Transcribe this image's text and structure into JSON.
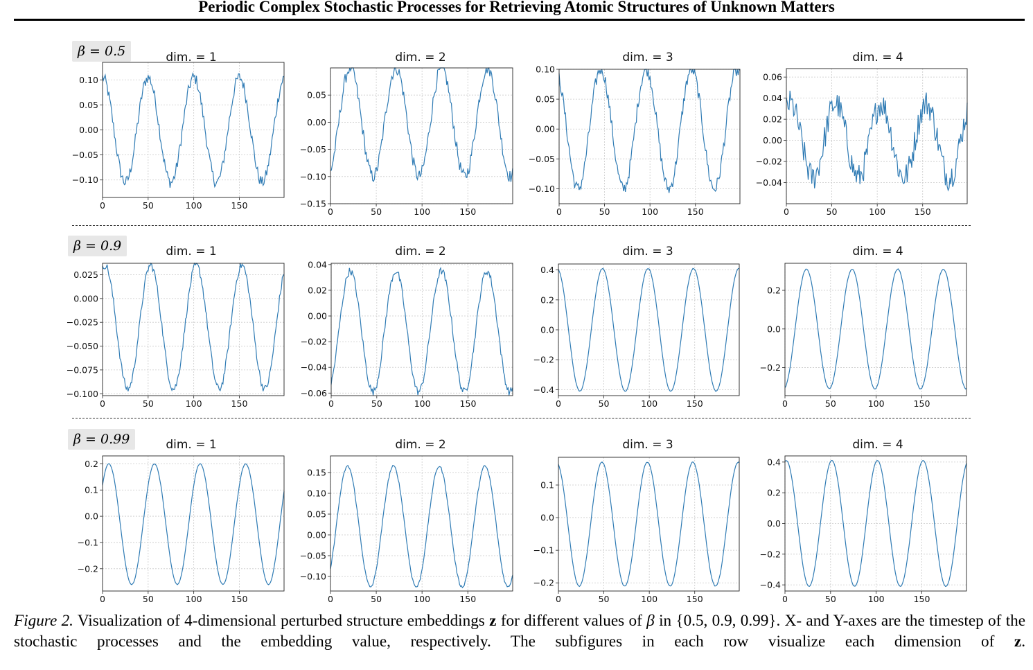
{
  "header": {
    "running_title": "Periodic Complex Stochastic Processes for Retrieving Atomic Structures of Unknown Matters"
  },
  "figure": {
    "row_labels": [
      "β = 0.5",
      "β = 0.9",
      "β = 0.99"
    ],
    "caption": {
      "label": "Figure 2.",
      "line1": "Visualization of 4-dimensional perturbed structure embeddings",
      "var": "z",
      "line1b": "for different values of",
      "beta": "β",
      "line1c": "in {0.5, 0.9, 0.99}. X- and Y-axes are",
      "line2": "the timestep of the stochastic processes and the embedding value, respectively. The subfigures in each row visualize each dimension of",
      "end": "."
    }
  },
  "chart_data": [
    {
      "type": "line",
      "row": 0,
      "title": "dim. = 1",
      "x_range": [
        0,
        199
      ],
      "xticks": [
        0,
        50,
        100,
        150
      ],
      "ylim": [
        -0.135,
        0.135
      ],
      "yticks": [
        -0.1,
        -0.05,
        0.0,
        0.05,
        0.1
      ],
      "ytick_labels": [
        "−0.10",
        "−0.05",
        "0.00",
        "0.05",
        "0.10"
      ],
      "series": [
        {
          "period": 50,
          "amplitude": 0.105,
          "phase_deg": 90,
          "noise": 0.012
        }
      ],
      "grid": true
    },
    {
      "type": "line",
      "row": 0,
      "title": "dim. = 2",
      "x_range": [
        0,
        199
      ],
      "xticks": [
        0,
        50,
        100,
        150
      ],
      "ylim": [
        -0.15,
        0.1
      ],
      "yticks": [
        -0.15,
        -0.1,
        -0.05,
        0.0,
        0.05
      ],
      "ytick_labels": [
        "−0.15",
        "−0.10",
        "−0.05",
        "0.00",
        "0.05"
      ],
      "series": [
        {
          "period": 50,
          "amplitude": 0.1,
          "phase_deg": -65,
          "noise": 0.012
        }
      ],
      "grid": true
    },
    {
      "type": "line",
      "row": 0,
      "title": "dim. = 3",
      "x_range": [
        0,
        199
      ],
      "xticks": [
        0,
        50,
        100,
        150
      ],
      "ylim": [
        -0.125,
        0.1
      ],
      "yticks": [
        -0.1,
        -0.05,
        0.0,
        0.05,
        0.1
      ],
      "ytick_labels": [
        "−0.10",
        "−0.05",
        "0.00",
        "0.05",
        "0.10"
      ],
      "series": [
        {
          "period": 50,
          "amplitude": 0.1,
          "phase_deg": 120,
          "noise": 0.011
        }
      ],
      "grid": true
    },
    {
      "type": "line",
      "row": 0,
      "title": "dim. = 4",
      "x_range": [
        0,
        199
      ],
      "xticks": [
        0,
        50,
        100,
        150
      ],
      "ylim": [
        -0.06,
        0.068
      ],
      "yticks": [
        -0.04,
        -0.02,
        0.0,
        0.02,
        0.04,
        0.06
      ],
      "ytick_labels": [
        "−0.04",
        "−0.02",
        "0.00",
        "0.02",
        "0.04",
        "0.06"
      ],
      "series": [
        {
          "period": 50,
          "amplitude": 0.035,
          "phase_deg": 60,
          "noise": 0.013
        }
      ],
      "grid": true
    },
    {
      "type": "line",
      "row": 1,
      "title": "dim. = 1",
      "x_range": [
        0,
        199
      ],
      "xticks": [
        0,
        50,
        100,
        150
      ],
      "ylim": [
        -0.102,
        0.037
      ],
      "yticks": [
        -0.1,
        -0.075,
        -0.05,
        -0.025,
        0.0,
        0.025
      ],
      "ytick_labels": [
        "−0.100",
        "−0.075",
        "−0.050",
        "−0.025",
        "0.000",
        "0.025"
      ],
      "series": [
        {
          "period": 50,
          "amplitude": 0.065,
          "offset": -0.03,
          "phase_deg": 70,
          "noise": 0.004
        }
      ],
      "grid": true
    },
    {
      "type": "line",
      "row": 1,
      "title": "dim. = 2",
      "x_range": [
        0,
        199
      ],
      "xticks": [
        0,
        50,
        100,
        150
      ],
      "ylim": [
        -0.062,
        0.041
      ],
      "yticks": [
        -0.06,
        -0.04,
        -0.02,
        0.0,
        0.02,
        0.04
      ],
      "ytick_labels": [
        "−0.06",
        "−0.04",
        "−0.02",
        "0.00",
        "0.02",
        "0.04"
      ],
      "series": [
        {
          "period": 50,
          "amplitude": 0.047,
          "offset": -0.012,
          "phase_deg": -60,
          "noise": 0.003
        }
      ],
      "grid": true
    },
    {
      "type": "line",
      "row": 1,
      "title": "dim. = 3",
      "x_range": [
        0,
        199
      ],
      "xticks": [
        0,
        50,
        100,
        150
      ],
      "ylim": [
        -0.44,
        0.44
      ],
      "yticks": [
        -0.4,
        -0.2,
        0.0,
        0.2,
        0.4
      ],
      "ytick_labels": [
        "−0.4",
        "−0.2",
        "0.0",
        "0.2",
        "0.4"
      ],
      "series": [
        {
          "period": 50,
          "amplitude": 0.41,
          "phase_deg": 100,
          "noise": 0.002
        }
      ],
      "grid": true
    },
    {
      "type": "line",
      "row": 1,
      "title": "dim. = 4",
      "x_range": [
        0,
        199
      ],
      "xticks": [
        0,
        50,
        100,
        150
      ],
      "ylim": [
        -0.345,
        0.34
      ],
      "yticks": [
        -0.2,
        0.0,
        0.2
      ],
      "ytick_labels": [
        "−0.2",
        "0.0",
        "0.2"
      ],
      "series": [
        {
          "period": 50,
          "amplitude": 0.31,
          "phase_deg": -80,
          "noise": 0.002
        }
      ],
      "grid": true
    },
    {
      "type": "line",
      "row": 2,
      "title": "dim. = 1",
      "x_range": [
        0,
        199
      ],
      "xticks": [
        0,
        50,
        100,
        150
      ],
      "ylim": [
        -0.285,
        0.23
      ],
      "yticks": [
        -0.2,
        -0.1,
        0.0,
        0.1,
        0.2
      ],
      "ytick_labels": [
        "−0.2",
        "−0.1",
        "0.0",
        "0.1",
        "0.2"
      ],
      "series": [
        {
          "period": 50,
          "amplitude": 0.23,
          "offset": -0.03,
          "phase_deg": 40,
          "noise": 0.001
        }
      ],
      "grid": true
    },
    {
      "type": "line",
      "row": 2,
      "title": "dim. = 2",
      "x_range": [
        0,
        199
      ],
      "xticks": [
        0,
        50,
        100,
        150
      ],
      "ylim": [
        -0.135,
        0.19
      ],
      "yticks": [
        -0.1,
        -0.05,
        0.0,
        0.05,
        0.1,
        0.15
      ],
      "ytick_labels": [
        "−0.10",
        "−0.05",
        "0.00",
        "0.05",
        "0.10",
        "0.15"
      ],
      "series": [
        {
          "period": 50,
          "amplitude": 0.145,
          "offset": 0.02,
          "phase_deg": -45,
          "noise": 0.003
        }
      ],
      "grid": true
    },
    {
      "type": "line",
      "row": 2,
      "title": "dim. = 3",
      "x_range": [
        0,
        199
      ],
      "xticks": [
        0,
        50,
        100,
        150
      ],
      "ylim": [
        -0.225,
        0.185
      ],
      "yticks": [
        -0.2,
        -0.1,
        0.0,
        0.1
      ],
      "ytick_labels": [
        "−0.2",
        "−0.1",
        "0.0",
        "0.1"
      ],
      "series": [
        {
          "period": 50,
          "amplitude": 0.19,
          "offset": -0.02,
          "phase_deg": 105,
          "noise": 0.001
        }
      ],
      "grid": true
    },
    {
      "type": "line",
      "row": 2,
      "title": "dim. = 4",
      "x_range": [
        0,
        199
      ],
      "xticks": [
        0,
        50,
        100,
        150
      ],
      "ylim": [
        -0.44,
        0.44
      ],
      "yticks": [
        -0.4,
        -0.2,
        0.0,
        0.2,
        0.4
      ],
      "ytick_labels": [
        "−0.4",
        "−0.2",
        "0.0",
        "0.2",
        "0.4"
      ],
      "series": [
        {
          "period": 50,
          "amplitude": 0.41,
          "phase_deg": 80,
          "noise": 0.001
        }
      ],
      "grid": true
    }
  ]
}
